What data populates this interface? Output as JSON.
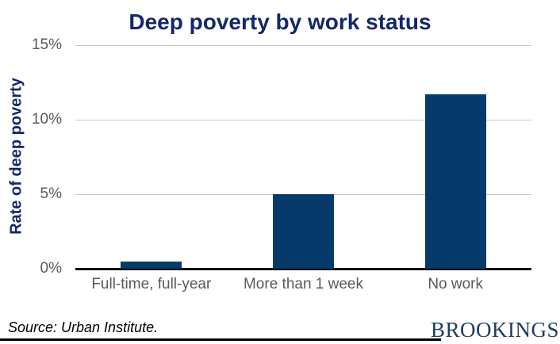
{
  "chart_data": {
    "type": "bar",
    "title": "Deep poverty by work status",
    "categories": [
      "Full-time, full-year",
      "More than 1 week",
      "No work"
    ],
    "values": [
      0.5,
      5.0,
      11.7
    ],
    "xlabel": "",
    "ylabel": "Rate of deep poverty",
    "ylim": [
      0,
      15
    ],
    "yticks": [
      0,
      5,
      10,
      15
    ],
    "ytick_labels": [
      "0%",
      "5%",
      "10%",
      "15%"
    ],
    "grid": true,
    "legend_position": "none",
    "bar_color": "#063a6b",
    "title_color": "#14276b",
    "tick_color": "#595959",
    "gridline_color": "#c8c8c8"
  },
  "footer": {
    "source": "Source: Urban Institute.",
    "brand": "BROOKINGS",
    "brand_color": "#1e3e63"
  }
}
